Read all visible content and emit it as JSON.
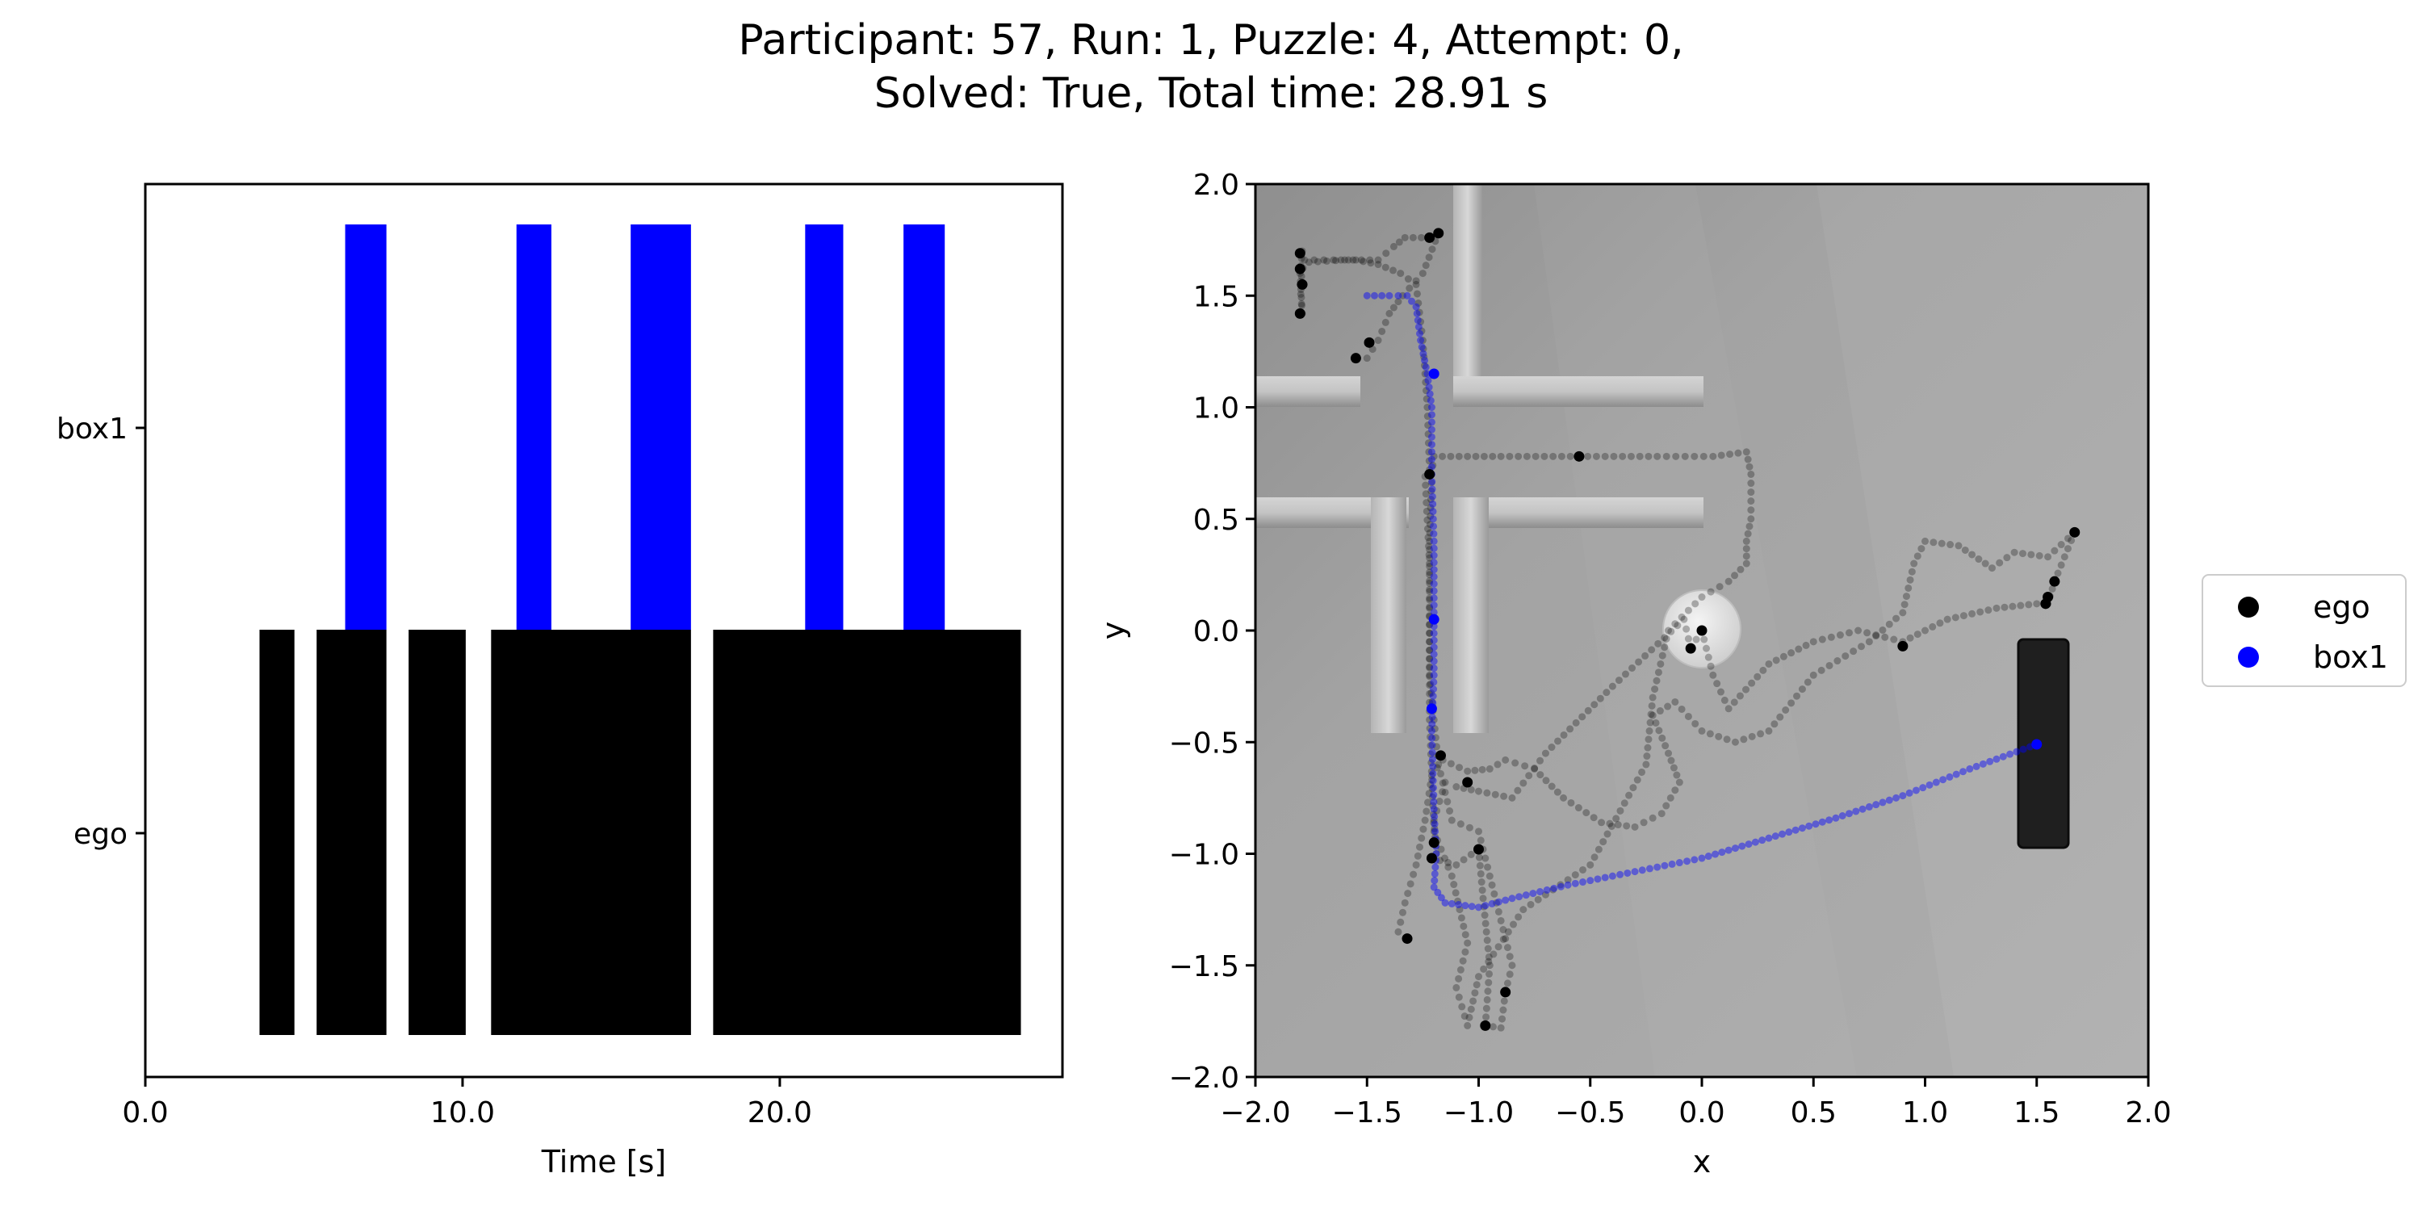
{
  "title": {
    "line1": "Participant: 57, Run: 1, Puzzle: 4, Attempt: 0,",
    "line2": "Solved: True, Total time: 28.91 s"
  },
  "colors": {
    "ego": "#000000",
    "box1": "#0000ff",
    "background": "#a7a7a7",
    "walls": "#c8c8c8",
    "target": "#1f1f1f"
  },
  "chart_data": [
    {
      "type": "bar",
      "subtype": "broken_barh",
      "xlabel": "Time [s]",
      "ylabel": "",
      "xlim": [
        0,
        28.91
      ],
      "xticks": [
        0.0,
        10.0,
        20.0
      ],
      "xtick_labels": [
        "0.0",
        "10.0",
        "20.0"
      ],
      "rows": [
        "ego",
        "box1"
      ],
      "series": [
        {
          "name": "ego",
          "color": "#000000",
          "intervals": [
            [
              3.6,
              4.7
            ],
            [
              5.4,
              7.6
            ],
            [
              8.3,
              10.1
            ],
            [
              10.9,
              17.2
            ],
            [
              17.9,
              27.6
            ]
          ]
        },
        {
          "name": "box1",
          "color": "#0000ff",
          "intervals": [
            [
              6.3,
              7.6
            ],
            [
              11.7,
              12.8
            ],
            [
              15.3,
              17.2
            ],
            [
              20.8,
              22.0
            ],
            [
              23.9,
              25.2
            ]
          ]
        }
      ]
    },
    {
      "type": "scatter",
      "xlabel": "x",
      "ylabel": "y",
      "xlim": [
        -2.0,
        2.0
      ],
      "ylim": [
        -2.0,
        2.0
      ],
      "xticks": [
        -2.0,
        -1.5,
        -1.0,
        -0.5,
        0.0,
        0.5,
        1.0,
        1.5,
        2.0
      ],
      "xtick_labels": [
        "−2.0",
        "−1.5",
        "−1.0",
        "−0.5",
        "0.0",
        "0.5",
        "1.0",
        "1.5",
        "2.0"
      ],
      "yticks": [
        -2.0,
        -1.5,
        -1.0,
        -0.5,
        0.0,
        0.5,
        1.0,
        1.5,
        2.0
      ],
      "ytick_labels": [
        "−2.0",
        "−1.5",
        "−1.0",
        "−0.5",
        "0.0",
        "0.5",
        "1.0",
        "1.5",
        "2.0"
      ],
      "legend_position": "outside-right",
      "series": [
        {
          "name": "ego",
          "color": "#000000",
          "path": [
            [
              -1.32,
              -1.38
            ],
            [
              -1.36,
              -1.35
            ],
            [
              -1.33,
              -1.22
            ],
            [
              -1.28,
              -1.05
            ],
            [
              -1.24,
              -0.85
            ],
            [
              -1.21,
              -0.65
            ],
            [
              -1.16,
              -0.58
            ],
            [
              -1.05,
              -0.63
            ],
            [
              -0.95,
              -0.62
            ],
            [
              -0.88,
              -0.58
            ],
            [
              -0.75,
              -0.62
            ],
            [
              -0.62,
              -0.75
            ],
            [
              -0.45,
              -0.86
            ],
            [
              -0.3,
              -0.88
            ],
            [
              -0.18,
              -0.82
            ],
            [
              -0.1,
              -0.68
            ],
            [
              -0.15,
              -0.55
            ],
            [
              -0.22,
              -0.38
            ],
            [
              -0.12,
              -0.32
            ],
            [
              0.0,
              -0.45
            ],
            [
              0.15,
              -0.5
            ],
            [
              0.3,
              -0.45
            ],
            [
              0.5,
              -0.2
            ],
            [
              0.75,
              -0.05
            ],
            [
              0.9,
              0.08
            ],
            [
              0.95,
              0.3
            ],
            [
              1.0,
              0.4
            ],
            [
              1.15,
              0.38
            ],
            [
              1.3,
              0.28
            ],
            [
              1.4,
              0.35
            ],
            [
              1.55,
              0.33
            ],
            [
              1.67,
              0.44
            ],
            [
              1.58,
              0.22
            ],
            [
              1.55,
              0.12
            ],
            [
              1.5,
              0.12
            ],
            [
              1.32,
              0.1
            ],
            [
              1.1,
              0.05
            ],
            [
              0.9,
              -0.05
            ],
            [
              0.7,
              0.0
            ],
            [
              0.5,
              -0.05
            ],
            [
              0.3,
              -0.15
            ],
            [
              0.12,
              -0.35
            ],
            [
              0.05,
              -0.2
            ],
            [
              0.0,
              0.0
            ],
            [
              -0.05,
              -0.08
            ],
            [
              -0.08,
              0.05
            ],
            [
              -0.4,
              -0.25
            ],
            [
              -0.7,
              -0.55
            ],
            [
              -0.85,
              -0.75
            ],
            [
              -1.0,
              -0.72
            ],
            [
              -1.1,
              -0.7
            ],
            [
              -1.15,
              -0.68
            ],
            [
              -1.2,
              -0.85
            ],
            [
              -1.19,
              -1.0
            ],
            [
              -1.21,
              -1.02
            ],
            [
              -1.1,
              -1.05
            ],
            [
              -1.0,
              -0.98
            ],
            [
              -0.98,
              -1.2
            ],
            [
              -0.95,
              -1.5
            ],
            [
              -0.97,
              -1.77
            ],
            [
              -0.9,
              -1.78
            ],
            [
              -0.88,
              -1.62
            ],
            [
              -0.85,
              -1.5
            ],
            [
              -0.9,
              -1.3
            ],
            [
              -0.95,
              -1.1
            ],
            [
              -1.0,
              -0.9
            ],
            [
              -1.12,
              -0.85
            ],
            [
              -1.18,
              -0.6
            ],
            [
              -1.22,
              -0.2
            ],
            [
              -1.22,
              0.1
            ],
            [
              -1.22,
              0.4
            ],
            [
              -1.21,
              0.7
            ],
            [
              -1.2,
              0.78
            ],
            [
              -0.9,
              0.78
            ],
            [
              -0.55,
              0.78
            ],
            [
              -0.2,
              0.78
            ],
            [
              0.05,
              0.78
            ],
            [
              0.2,
              0.8
            ],
            [
              0.22,
              0.7
            ],
            [
              0.22,
              0.5
            ],
            [
              0.2,
              0.4
            ],
            [
              0.2,
              0.3
            ],
            [
              0.12,
              0.22
            ],
            [
              0.0,
              0.15
            ],
            [
              -0.15,
              0.0
            ],
            [
              -0.22,
              -0.3
            ],
            [
              -0.25,
              -0.6
            ],
            [
              -0.5,
              -1.05
            ],
            [
              -0.8,
              -1.25
            ],
            [
              -1.0,
              -1.55
            ],
            [
              -1.05,
              -1.77
            ],
            [
              -1.1,
              -1.6
            ],
            [
              -1.05,
              -1.4
            ],
            [
              -1.12,
              -1.1
            ],
            [
              -1.2,
              -0.9
            ],
            [
              -1.22,
              -0.4
            ],
            [
              -1.22,
              0.3
            ],
            [
              -1.24,
              0.69
            ],
            [
              -1.22,
              0.72
            ],
            [
              -1.23,
              1.0
            ],
            [
              -1.25,
              1.3
            ],
            [
              -1.28,
              1.55
            ],
            [
              -1.35,
              1.6
            ],
            [
              -1.45,
              1.64
            ],
            [
              -1.55,
              1.66
            ],
            [
              -1.65,
              1.66
            ],
            [
              -1.78,
              1.66
            ],
            [
              -1.8,
              1.55
            ],
            [
              -1.79,
              1.42
            ],
            [
              -1.8,
              1.6
            ],
            [
              -1.79,
              1.7
            ],
            [
              -1.76,
              1.65
            ],
            [
              -1.6,
              1.66
            ],
            [
              -1.45,
              1.66
            ],
            [
              -1.38,
              1.72
            ],
            [
              -1.33,
              1.76
            ],
            [
              -1.22,
              1.76
            ],
            [
              -1.18,
              1.78
            ],
            [
              -1.25,
              1.6
            ],
            [
              -1.34,
              1.5
            ],
            [
              -1.4,
              1.42
            ],
            [
              -1.45,
              1.3
            ],
            [
              -1.5,
              1.22
            ],
            [
              -1.55,
              1.22
            ]
          ],
          "highlights": [
            [
              -1.55,
              1.22
            ],
            [
              -1.49,
              1.29
            ],
            [
              -1.22,
              1.76
            ],
            [
              -1.18,
              1.78
            ],
            [
              -1.8,
              1.42
            ],
            [
              -1.79,
              1.55
            ],
            [
              -1.8,
              1.62
            ],
            [
              -1.8,
              1.69
            ],
            [
              -1.22,
              0.7
            ],
            [
              -0.55,
              0.78
            ],
            [
              0.0,
              0.0
            ],
            [
              -0.05,
              -0.08
            ],
            [
              1.67,
              0.44
            ],
            [
              1.58,
              0.22
            ],
            [
              1.55,
              0.15
            ],
            [
              1.54,
              0.12
            ],
            [
              0.9,
              -0.07
            ],
            [
              -1.17,
              -0.56
            ],
            [
              -1.05,
              -0.68
            ],
            [
              -1.2,
              -0.95
            ],
            [
              -1.21,
              -1.02
            ],
            [
              -1.0,
              -0.98
            ],
            [
              -1.32,
              -1.38
            ],
            [
              -0.97,
              -1.77
            ],
            [
              -0.88,
              -1.62
            ]
          ]
        },
        {
          "name": "box1",
          "color": "#0000ff",
          "path": [
            [
              -1.5,
              1.5
            ],
            [
              -1.4,
              1.5
            ],
            [
              -1.32,
              1.5
            ],
            [
              -1.28,
              1.45
            ],
            [
              -1.26,
              1.3
            ],
            [
              -1.23,
              1.15
            ],
            [
              -1.21,
              1.0
            ],
            [
              -1.21,
              0.7
            ],
            [
              -1.2,
              0.4
            ],
            [
              -1.2,
              0.05
            ],
            [
              -1.2,
              -0.2
            ],
            [
              -1.21,
              -0.45
            ],
            [
              -1.2,
              -0.8
            ],
            [
              -1.19,
              -1.0
            ],
            [
              -1.2,
              -1.15
            ],
            [
              -1.15,
              -1.22
            ],
            [
              -1.0,
              -1.24
            ],
            [
              -0.85,
              -1.2
            ],
            [
              -0.6,
              -1.14
            ],
            [
              -0.3,
              -1.08
            ],
            [
              0.0,
              -1.02
            ],
            [
              0.3,
              -0.93
            ],
            [
              0.6,
              -0.84
            ],
            [
              0.9,
              -0.74
            ],
            [
              1.2,
              -0.62
            ],
            [
              1.5,
              -0.51
            ]
          ],
          "highlights": [
            [
              -1.2,
              0.05
            ],
            [
              -1.21,
              -0.35
            ],
            [
              -1.2,
              1.15
            ],
            [
              1.5,
              -0.51
            ]
          ]
        }
      ]
    }
  ],
  "legend": {
    "items": [
      {
        "label": "ego",
        "color": "#000000"
      },
      {
        "label": "box1",
        "color": "#0000ff"
      }
    ]
  }
}
